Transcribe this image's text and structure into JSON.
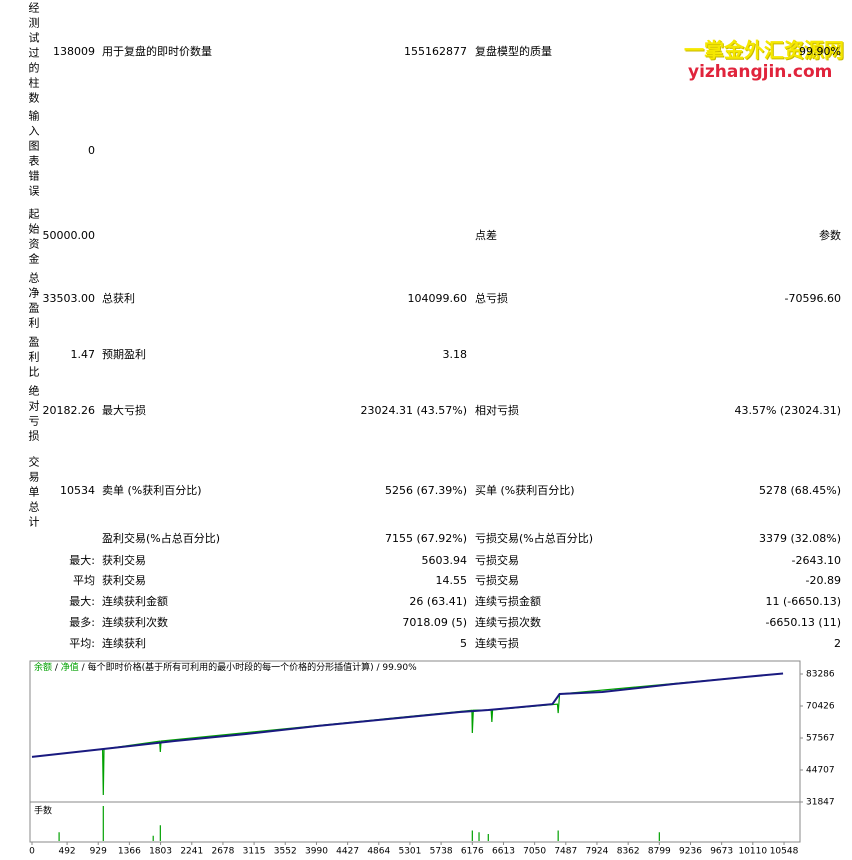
{
  "report": {
    "rows": [
      {
        "label": "经测试过的柱数",
        "value": "138009",
        "label2": "用于复盘的即时价数量",
        "value2": "155162877",
        "label3": "复盘模型的质量",
        "value3": "99.90%"
      },
      {
        "label": "输入图表错误",
        "value": "0"
      },
      {
        "label": "起始资金",
        "value": "50000.00",
        "label3": "点差",
        "value3": "参数"
      },
      {
        "label": "总净盈利",
        "value": "33503.00",
        "label2": "总获利",
        "value2": "104099.60",
        "label3": "总亏损",
        "value3": "-70596.60"
      },
      {
        "label": "盈利比",
        "value": "1.47",
        "label2": "预期盈利",
        "value2": "3.18"
      },
      {
        "label": "绝对亏损",
        "value": "20182.26",
        "label2": "最大亏损",
        "value2": "23024.31 (43.57%)",
        "label3": "相对亏损",
        "value3": "43.57% (23024.31)"
      },
      {
        "label": "交易单总计",
        "value": "10534",
        "label2": "卖单 (%获利百分比)",
        "value2": "5256 (67.39%)",
        "label3": "买单 (%获利百分比)",
        "value3": "5278 (68.45%)"
      },
      {
        "label2": "盈利交易(%占总百分比)",
        "value2": "7155 (67.92%)",
        "label3": "亏损交易(%占总百分比)",
        "value3": "3379 (32.08%)"
      },
      {
        "value": "最大:",
        "label2": "获利交易",
        "value2": "5603.94",
        "label3": "亏损交易",
        "value3": "-2643.10"
      },
      {
        "value": "平均",
        "label2": "获利交易",
        "value2": "14.55",
        "label3": "亏损交易",
        "value3": "-20.89"
      },
      {
        "value": "最大:",
        "label2": "连续获利金额",
        "value2": "26 (63.41)",
        "label3": "连续亏损金额",
        "value3": "11 (-6650.13)"
      },
      {
        "value": "最多:",
        "label2": "连续获利次数",
        "value2": "7018.09 (5)",
        "label3": "连续亏损次数",
        "value3": "-6650.13 (11)"
      },
      {
        "value": "平均:",
        "label2": "连续获利",
        "value2": "5",
        "label3": "连续亏损",
        "value3": "2"
      }
    ],
    "watermark": {
      "title": "一掌金外汇资源网",
      "url": "yizhangjin.com"
    }
  },
  "chart_data": {
    "type": "line",
    "caption": "每个即时价格(基于所有可利用的最小时段的每一个价格的分形插值计算)",
    "quality": "99.90%",
    "series": [
      {
        "name": "余额",
        "color": "#1a1a80",
        "x": [
          0,
          1000,
          2000,
          3000,
          4000,
          5000,
          6000,
          6400,
          7300,
          7400,
          8000,
          9000,
          10000,
          10534
        ],
        "values": [
          50000,
          53148,
          56360,
          59176,
          62390,
          65200,
          68000,
          68800,
          71200,
          75250,
          76056,
          79270,
          82087,
          83503
        ]
      },
      {
        "name": "净值",
        "color": "#00a000",
        "x": [
          0,
          990,
          1000,
          1010,
          1790,
          1800,
          1810,
          6170,
          6176,
          6190,
          6440,
          6450,
          6460,
          7370,
          7380,
          7400,
          10534
        ],
        "values": [
          50000,
          53100,
          34660,
          53148,
          56300,
          51942,
          56360,
          68700,
          59578,
          68750,
          68850,
          64000,
          68850,
          71180,
          67600,
          75250,
          83503
        ]
      }
    ],
    "volume": {
      "label": "手数",
      "ylim": [
        0,
        1
      ],
      "x": [
        380,
        1000,
        1700,
        1800,
        6176,
        6270,
        6400,
        7380,
        8799
      ],
      "values": [
        0.25,
        1,
        0.15,
        0.45,
        0.3,
        0.25,
        0.2,
        0.3,
        0.25
      ]
    },
    "xlim": [
      0,
      10772
    ],
    "xticks": [
      0,
      492,
      929,
      1366,
      1803,
      2241,
      2678,
      3115,
      3552,
      3990,
      4427,
      4864,
      5301,
      5738,
      6176,
      6613,
      7050,
      7487,
      7924,
      8362,
      8799,
      9236,
      9673,
      10110,
      10548
    ],
    "ylim": [
      31847,
      88109
    ],
    "yticks": [
      31847,
      44707,
      57567,
      70426,
      83286
    ]
  }
}
